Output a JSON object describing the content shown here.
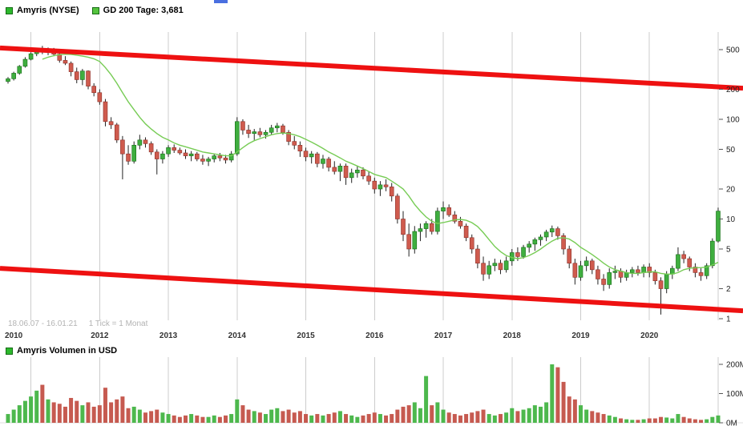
{
  "legend": {
    "items": [
      {
        "label": "Amyris (NYSE)",
        "color": "#2db82d"
      },
      {
        "label": "GD 200 Tage: 3,681",
        "color": "#55c43e"
      }
    ]
  },
  "volume_panel": {
    "legend_label": "Amyris Volumen in USD",
    "color": "#2db82d"
  },
  "footer": {
    "range_info": "18.06.07 - 16.01.21",
    "tick_info": "1 Tick = 1 Monat"
  },
  "colors": {
    "up": "#3fae3f",
    "up_stroke": "#156b15",
    "down": "#cf5b4e",
    "down_stroke": "#8b2f28",
    "wick": "#222222",
    "ma": "#77cc55",
    "channel": "#ee1111",
    "grid": "#cccccc",
    "axis_text": "#222222",
    "volume_up": "#4db84d",
    "volume_down": "#c65a50",
    "artifact": "#4a6fe0"
  },
  "chart_data": {
    "type": "candlestick+volume",
    "title": "Amyris (NYSE)",
    "scale": "log",
    "ylim": [
      1,
      550
    ],
    "tick_interval": "1 Monat",
    "date_range": "18.06.07 - 16.01.21",
    "ma_name": "GD 200 Tage",
    "ma_current": 3.681,
    "y_ticks": [
      500,
      200,
      100,
      50,
      20,
      10,
      5,
      2,
      1
    ],
    "vol_ticks": [
      {
        "text": "200M",
        "v": 200
      },
      {
        "text": "100M",
        "v": 100
      },
      {
        "text": "0M",
        "v": 0
      }
    ],
    "x_labels": [
      {
        "text": "2010",
        "i": 0
      },
      {
        "text": "2012",
        "i": 16
      },
      {
        "text": "2013",
        "i": 28
      },
      {
        "text": "2014",
        "i": 40
      },
      {
        "text": "2015",
        "i": 52
      },
      {
        "text": "2016",
        "i": 64
      },
      {
        "text": "2017",
        "i": 76
      },
      {
        "text": "2018",
        "i": 88
      },
      {
        "text": "2019",
        "i": 100
      },
      {
        "text": "2020",
        "i": 112
      }
    ],
    "channel": {
      "upper_start": 520,
      "upper_end": 205,
      "lower_start": 3.2,
      "lower_end": 1.2
    },
    "candles": [
      [
        "2010-09",
        240,
        265,
        228,
        255,
        30
      ],
      [
        "2010-10",
        255,
        300,
        245,
        290,
        45
      ],
      [
        "2010-11",
        290,
        350,
        280,
        340,
        60
      ],
      [
        "2010-12",
        340,
        420,
        330,
        400,
        75
      ],
      [
        "2011-01",
        400,
        470,
        390,
        455,
        90
      ],
      [
        "2011-02",
        455,
        520,
        430,
        500,
        110
      ],
      [
        "2011-03",
        500,
        545,
        450,
        480,
        130
      ],
      [
        "2011-04",
        480,
        525,
        440,
        505,
        80
      ],
      [
        "2011-05",
        505,
        520,
        430,
        450,
        70
      ],
      [
        "2011-06",
        450,
        470,
        370,
        390,
        65
      ],
      [
        "2011-07",
        390,
        430,
        350,
        365,
        55
      ],
      [
        "2011-08",
        365,
        380,
        270,
        300,
        85
      ],
      [
        "2011-09",
        300,
        330,
        230,
        250,
        75
      ],
      [
        "2011-10",
        250,
        320,
        220,
        305,
        60
      ],
      [
        "2011-11",
        305,
        310,
        200,
        215,
        70
      ],
      [
        "2011-12",
        215,
        230,
        170,
        185,
        55
      ],
      [
        "2012-01",
        185,
        200,
        140,
        150,
        60
      ],
      [
        "2012-02",
        150,
        160,
        85,
        95,
        120
      ],
      [
        "2012-03",
        95,
        105,
        80,
        88,
        70
      ],
      [
        "2012-04",
        88,
        92,
        58,
        62,
        80
      ],
      [
        "2012-05",
        62,
        68,
        25,
        45,
        90
      ],
      [
        "2012-06",
        45,
        55,
        35,
        38,
        50
      ],
      [
        "2012-07",
        38,
        60,
        36,
        55,
        55
      ],
      [
        "2012-08",
        55,
        70,
        50,
        62,
        45
      ],
      [
        "2012-09",
        62,
        66,
        52,
        57,
        35
      ],
      [
        "2012-10",
        57,
        60,
        44,
        47,
        40
      ],
      [
        "2012-11",
        47,
        50,
        28,
        40,
        45
      ],
      [
        "2012-12",
        40,
        48,
        36,
        45,
        35
      ],
      [
        "2013-01",
        45,
        55,
        42,
        52,
        30
      ],
      [
        "2013-02",
        52,
        56,
        46,
        49,
        25
      ],
      [
        "2013-03",
        49,
        52,
        44,
        46,
        20
      ],
      [
        "2013-04",
        46,
        50,
        40,
        43,
        25
      ],
      [
        "2013-05",
        43,
        48,
        38,
        45,
        30
      ],
      [
        "2013-06",
        45,
        47,
        38,
        40,
        25
      ],
      [
        "2013-07",
        40,
        44,
        35,
        38,
        20
      ],
      [
        "2013-08",
        38,
        42,
        34,
        40,
        20
      ],
      [
        "2013-09",
        40,
        45,
        37,
        43,
        25
      ],
      [
        "2013-10",
        43,
        46,
        38,
        41,
        20
      ],
      [
        "2013-11",
        41,
        44,
        36,
        39,
        25
      ],
      [
        "2013-12",
        39,
        48,
        37,
        45,
        30
      ],
      [
        "2014-01",
        45,
        105,
        43,
        95,
        80
      ],
      [
        "2014-02",
        95,
        100,
        70,
        78,
        60
      ],
      [
        "2014-03",
        78,
        88,
        65,
        72,
        45
      ],
      [
        "2014-04",
        72,
        80,
        62,
        75,
        40
      ],
      [
        "2014-05",
        75,
        82,
        66,
        70,
        35
      ],
      [
        "2014-06",
        70,
        78,
        64,
        74,
        30
      ],
      [
        "2014-07",
        74,
        88,
        70,
        82,
        45
      ],
      [
        "2014-08",
        82,
        92,
        74,
        86,
        50
      ],
      [
        "2014-09",
        86,
        90,
        70,
        74,
        40
      ],
      [
        "2014-10",
        74,
        78,
        55,
        60,
        45
      ],
      [
        "2014-11",
        60,
        68,
        50,
        55,
        35
      ],
      [
        "2014-12",
        55,
        60,
        42,
        48,
        40
      ],
      [
        "2015-01",
        48,
        52,
        38,
        42,
        30
      ],
      [
        "2015-02",
        42,
        48,
        36,
        45,
        25
      ],
      [
        "2015-03",
        45,
        47,
        33,
        36,
        30
      ],
      [
        "2015-04",
        36,
        44,
        32,
        40,
        25
      ],
      [
        "2015-05",
        40,
        42,
        30,
        33,
        30
      ],
      [
        "2015-06",
        33,
        38,
        28,
        30,
        35
      ],
      [
        "2015-07",
        30,
        36,
        24,
        34,
        40
      ],
      [
        "2015-08",
        34,
        36,
        22,
        26,
        30
      ],
      [
        "2015-09",
        26,
        32,
        23,
        29,
        25
      ],
      [
        "2015-10",
        29,
        34,
        26,
        31,
        20
      ],
      [
        "2015-11",
        31,
        33,
        25,
        27,
        25
      ],
      [
        "2015-12",
        27,
        30,
        22,
        24,
        30
      ],
      [
        "2016-01",
        24,
        26,
        18,
        20,
        35
      ],
      [
        "2016-02",
        20,
        24,
        17,
        22,
        30
      ],
      [
        "2016-03",
        22,
        25,
        19,
        21,
        25
      ],
      [
        "2016-04",
        21,
        23,
        15,
        17,
        30
      ],
      [
        "2016-05",
        17,
        18,
        9,
        10,
        45
      ],
      [
        "2016-06",
        10,
        12,
        6,
        7,
        55
      ],
      [
        "2016-07",
        7,
        9,
        4.2,
        5,
        60
      ],
      [
        "2016-08",
        5,
        8.5,
        4.5,
        7.5,
        70
      ],
      [
        "2016-09",
        7.5,
        9,
        6,
        8,
        50
      ],
      [
        "2016-10",
        8,
        9.5,
        6.5,
        9,
        160
      ],
      [
        "2016-11",
        9,
        10,
        7,
        7.5,
        60
      ],
      [
        "2016-12",
        7.5,
        13,
        7,
        12,
        70
      ],
      [
        "2017-01",
        12,
        15,
        10,
        13,
        45
      ],
      [
        "2017-02",
        13,
        14,
        10.5,
        11,
        35
      ],
      [
        "2017-03",
        11,
        12,
        9,
        9.5,
        30
      ],
      [
        "2017-04",
        9.5,
        10.5,
        8,
        8.5,
        25
      ],
      [
        "2017-05",
        8.5,
        9,
        6,
        6.5,
        30
      ],
      [
        "2017-06",
        6.5,
        7,
        4.5,
        5,
        35
      ],
      [
        "2017-07",
        5,
        5.5,
        3.2,
        3.6,
        40
      ],
      [
        "2017-08",
        3.6,
        4.2,
        2.4,
        2.8,
        45
      ],
      [
        "2017-09",
        2.8,
        3.8,
        2.5,
        3.4,
        30
      ],
      [
        "2017-10",
        3.4,
        4,
        3,
        3.6,
        25
      ],
      [
        "2017-11",
        3.6,
        3.9,
        2.8,
        3.1,
        30
      ],
      [
        "2017-12",
        3.1,
        4.2,
        2.9,
        3.8,
        35
      ],
      [
        "2018-01",
        3.8,
        5,
        3.4,
        4.6,
        50
      ],
      [
        "2018-02",
        4.6,
        5.2,
        3.8,
        4.2,
        40
      ],
      [
        "2018-03",
        4.2,
        5.5,
        4,
        5.2,
        45
      ],
      [
        "2018-04",
        5.2,
        6,
        4.6,
        5.6,
        50
      ],
      [
        "2018-05",
        5.6,
        6.5,
        4.8,
        6.2,
        60
      ],
      [
        "2018-06",
        6.2,
        7,
        5.4,
        6.6,
        55
      ],
      [
        "2018-07",
        6.6,
        7.8,
        6,
        7.4,
        70
      ],
      [
        "2018-08",
        7.4,
        8.6,
        6.6,
        8,
        200
      ],
      [
        "2018-09",
        8,
        8.4,
        6.2,
        6.8,
        190
      ],
      [
        "2018-10",
        6.8,
        7.2,
        4.4,
        5,
        140
      ],
      [
        "2018-11",
        5,
        5.4,
        3.2,
        3.6,
        90
      ],
      [
        "2018-12",
        3.6,
        4,
        2.2,
        2.6,
        80
      ],
      [
        "2019-01",
        2.6,
        3.8,
        2.4,
        3.4,
        60
      ],
      [
        "2019-02",
        3.4,
        4.2,
        3,
        3.8,
        45
      ],
      [
        "2019-03",
        3.8,
        4,
        2.8,
        3.1,
        40
      ],
      [
        "2019-04",
        3.1,
        3.4,
        2.2,
        2.5,
        35
      ],
      [
        "2019-05",
        2.5,
        2.8,
        1.9,
        2.2,
        30
      ],
      [
        "2019-06",
        2.2,
        3.2,
        2,
        2.9,
        25
      ],
      [
        "2019-07",
        2.9,
        3.4,
        2.5,
        3,
        20
      ],
      [
        "2019-08",
        3,
        3.2,
        2.3,
        2.6,
        15
      ],
      [
        "2019-09",
        2.6,
        3.1,
        2.4,
        2.9,
        12
      ],
      [
        "2019-10",
        2.9,
        3.3,
        2.6,
        3.1,
        10
      ],
      [
        "2019-11",
        3.1,
        3.4,
        2.7,
        2.9,
        10
      ],
      [
        "2019-12",
        2.9,
        3.5,
        2.6,
        3.3,
        12
      ],
      [
        "2020-01",
        3.3,
        3.6,
        2.6,
        2.9,
        15
      ],
      [
        "2020-02",
        2.9,
        3.1,
        2.2,
        2.4,
        15
      ],
      [
        "2020-03",
        2.4,
        2.6,
        1.1,
        2,
        20
      ],
      [
        "2020-04",
        2,
        3,
        1.8,
        2.8,
        18
      ],
      [
        "2020-05",
        2.8,
        3.4,
        2.5,
        3.2,
        15
      ],
      [
        "2020-06",
        3.2,
        5.2,
        3,
        4.4,
        30
      ],
      [
        "2020-07",
        4.4,
        4.8,
        3.6,
        4,
        20
      ],
      [
        "2020-08",
        4,
        4.2,
        3,
        3.3,
        15
      ],
      [
        "2020-09",
        3.3,
        3.6,
        2.6,
        2.9,
        12
      ],
      [
        "2020-10",
        2.9,
        3.2,
        2.4,
        2.7,
        10
      ],
      [
        "2020-11",
        2.7,
        3.6,
        2.5,
        3.4,
        12
      ],
      [
        "2020-12",
        3.4,
        6.4,
        3.2,
        6,
        20
      ],
      [
        "2021-01",
        6,
        13,
        5.8,
        12,
        25
      ]
    ],
    "ma200": [
      null,
      null,
      null,
      null,
      null,
      null,
      400,
      420,
      435,
      445,
      450,
      448,
      440,
      430,
      420,
      405,
      380,
      330,
      280,
      230,
      185,
      150,
      125,
      105,
      90,
      80,
      72,
      66,
      62,
      58,
      55,
      53,
      51,
      49,
      47,
      46,
      45,
      44,
      43,
      43,
      47,
      52,
      57,
      61,
      64,
      67,
      70,
      72,
      73,
      72,
      70,
      67,
      63,
      59,
      55,
      51,
      47,
      44,
      41,
      38,
      36,
      34,
      32,
      30,
      28,
      27,
      26,
      24,
      22,
      20,
      17,
      14,
      12,
      10.5,
      9.5,
      9,
      9.2,
      9.5,
      9.8,
      9.9,
      9.7,
      9.2,
      8.4,
      7.3,
      6.2,
      5.3,
      4.7,
      4.3,
      4.1,
      4.0,
      4.1,
      4.3,
      4.6,
      5.0,
      5.5,
      6.0,
      6.4,
      6.5,
      6.3,
      5.8,
      5.2,
      4.8,
      4.4,
      4.0,
      3.6,
      3.3,
      3.1,
      3.0,
      2.9,
      2.85,
      2.85,
      2.9,
      2.95,
      2.95,
      2.85,
      2.8,
      2.8,
      2.9,
      3.1,
      3.2,
      3.25,
      3.25,
      3.3,
      3.45,
      3.68
    ]
  }
}
